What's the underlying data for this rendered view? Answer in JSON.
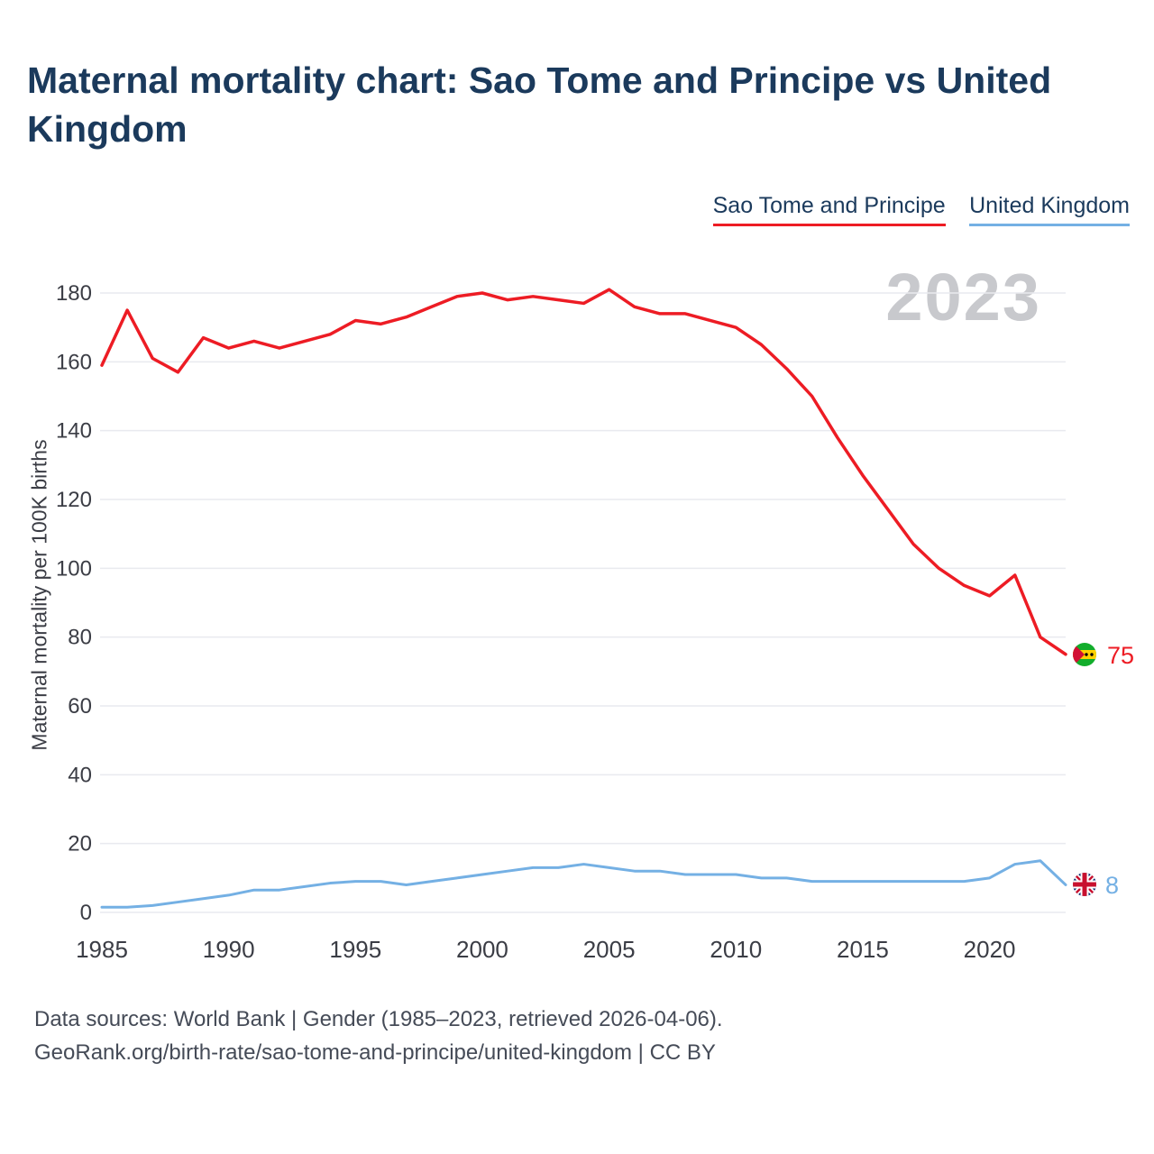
{
  "title": "Maternal mortality chart: Sao Tome and Principe vs United Kingdom",
  "watermark": "2023",
  "legend": [
    {
      "label": "Sao Tome and Principe",
      "color": "#ed1c24"
    },
    {
      "label": "United Kingdom",
      "color": "#74b0e4"
    }
  ],
  "colors": {
    "sao_tome_red": "#ed1c24",
    "uk_blue": "#74b0e4",
    "title_navy": "#1b3a5c",
    "watermark_gray": "#c8c9cd",
    "gridline_gray": "#e9eaef"
  },
  "end_labels": {
    "sao_tome": "75",
    "uk": "8"
  },
  "footer": {
    "line1": "Data sources: World Bank | Gender (1985–2023, retrieved 2026-04-06).",
    "line2": "GeoRank.org/birth-rate/sao-tome-and-principe/united-kingdom | CC BY"
  },
  "chart_data": {
    "type": "line",
    "title": "Maternal mortality chart: Sao Tome and Principe vs United Kingdom",
    "xlabel": "",
    "ylabel": "Maternal mortality per 100K births",
    "ylim": [
      0,
      180
    ],
    "yticks": [
      0,
      20,
      40,
      60,
      80,
      100,
      120,
      140,
      160,
      180
    ],
    "xticks": [
      1985,
      1990,
      1995,
      2000,
      2005,
      2010,
      2015,
      2020
    ],
    "grid": true,
    "legend_position": "top-right",
    "x": [
      1985,
      1986,
      1987,
      1988,
      1989,
      1990,
      1991,
      1992,
      1993,
      1994,
      1995,
      1996,
      1997,
      1998,
      1999,
      2000,
      2001,
      2002,
      2003,
      2004,
      2005,
      2006,
      2007,
      2008,
      2009,
      2010,
      2011,
      2012,
      2013,
      2014,
      2015,
      2016,
      2017,
      2018,
      2019,
      2020,
      2021,
      2022,
      2023
    ],
    "series": [
      {
        "name": "Sao Tome and Principe",
        "color": "#ed1c24",
        "values": [
          159,
          175,
          161,
          157,
          167,
          164,
          166,
          164,
          166,
          168,
          172,
          171,
          173,
          176,
          179,
          180,
          178,
          179,
          178,
          177,
          181,
          176,
          174,
          174,
          172,
          170,
          165,
          158,
          150,
          138,
          127,
          117,
          107,
          100,
          95,
          92,
          98,
          80,
          75
        ]
      },
      {
        "name": "United Kingdom",
        "color": "#74b0e4",
        "values": [
          1.5,
          1.5,
          2,
          3,
          4,
          5,
          6.5,
          6.5,
          7.5,
          8.5,
          9,
          9,
          8,
          9,
          10,
          11,
          12,
          13,
          13,
          14,
          13,
          12,
          12,
          11,
          11,
          11,
          10,
          10,
          9,
          9,
          9,
          9,
          9,
          9,
          9,
          10,
          14,
          15,
          8
        ]
      }
    ]
  }
}
